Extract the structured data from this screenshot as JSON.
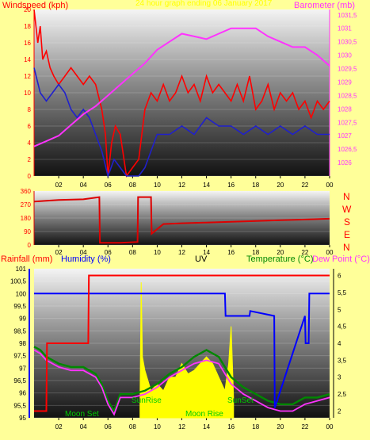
{
  "colors": {
    "background": "#ffff99",
    "windspeed": "#ff0000",
    "gust": "#ff0000",
    "avg": "#2020cc",
    "barometer": "#ff33ff",
    "direction": "#dd0000",
    "rainfall": "#ff0000",
    "humidity": "#0000ff",
    "temperature": "#008800",
    "dewpoint": "#ff33ff",
    "uv": "#ffff00",
    "solar_labels": "#00cc00"
  },
  "wind_panel": {
    "title_left": "Windspeed (kph)",
    "title_center": "24 hour graph ending 06 January 2017",
    "title_right": "Barometer (mb)"
  },
  "direction_panel": {
    "compass": [
      "N",
      "W",
      "S",
      "E",
      "N"
    ]
  },
  "temp_panel": {
    "labels": [
      "Rainfall (mm)",
      "Humidity (%)",
      "UV",
      "Temperature (°C)",
      "Dew Point (°C)"
    ],
    "events": [
      "Moon Set",
      "SunRise",
      "Moon Rise",
      "SunSet"
    ]
  },
  "chart_data": [
    {
      "type": "line",
      "title": "24 hour graph ending 06 January 2017",
      "ylabel": "Windspeed (kph)",
      "y2label": "Barometer (mb)",
      "x_ticks": [
        "02",
        "04",
        "06",
        "08",
        "10",
        "12",
        "14",
        "16",
        "18",
        "20",
        "22",
        "00"
      ],
      "ylim": [
        0,
        20
      ],
      "yticks": [
        0,
        2,
        4,
        6,
        8,
        10,
        12,
        14,
        16,
        18,
        20
      ],
      "y2lim": [
        1025.5,
        1031.7
      ],
      "y2ticks": [
        1026,
        1026.5,
        1027,
        1027.5,
        1028,
        1028.5,
        1029,
        1029.5,
        1030,
        1030.5,
        1031,
        1031.5
      ],
      "series": [
        {
          "name": "Windspeed (kph)",
          "axis": "left",
          "x": [
            0,
            0.3,
            0.5,
            0.7,
            1.0,
            1.3,
            1.6,
            2.0,
            2.5,
            3.0,
            3.5,
            4.0,
            4.5,
            5.0,
            5.5,
            5.8,
            6.0,
            6.3,
            6.6,
            7.0,
            7.5,
            8.0,
            8.5,
            9.0,
            9.5,
            10.0,
            10.5,
            11.0,
            11.5,
            12.0,
            12.5,
            13.0,
            13.5,
            14.0,
            14.5,
            15.0,
            15.5,
            16.0,
            16.5,
            17.0,
            17.5,
            18.0,
            18.5,
            19.0,
            19.5,
            20.0,
            20.5,
            21.0,
            21.5,
            22.0,
            22.5,
            23.0,
            23.5,
            24.0
          ],
          "y": [
            20,
            16,
            18,
            14,
            15,
            13,
            12,
            11,
            12,
            13,
            12,
            11,
            12,
            11,
            8,
            5,
            0,
            4,
            6,
            5,
            0,
            1,
            2,
            8,
            10,
            9,
            11,
            9,
            10,
            12,
            10,
            11,
            9,
            12,
            10,
            11,
            10,
            9,
            11,
            9,
            12,
            8,
            9,
            11,
            8,
            10,
            9,
            10,
            8,
            9,
            7,
            9,
            8,
            9
          ]
        },
        {
          "name": "Average windspeed (kph)",
          "axis": "left",
          "x": [
            0,
            0.5,
            1.0,
            1.5,
            2.0,
            2.5,
            3.0,
            3.5,
            4.0,
            4.5,
            5.0,
            5.5,
            6.0,
            6.5,
            7.0,
            7.5,
            8.0,
            8.5,
            9.0,
            9.5,
            10.0,
            11.0,
            12.0,
            13.0,
            14.0,
            15.0,
            16.0,
            17.0,
            18.0,
            19.0,
            20.0,
            21.0,
            22.0,
            23.0,
            24.0
          ],
          "y": [
            13,
            10,
            9,
            10,
            11,
            10,
            8,
            7,
            8,
            7,
            5,
            3,
            0,
            2,
            1,
            0,
            0,
            0,
            1,
            3,
            5,
            5,
            6,
            5,
            7,
            6,
            6,
            5,
            6,
            5,
            6,
            5,
            6,
            5,
            5
          ]
        },
        {
          "name": "Barometer (mb)",
          "axis": "right",
          "x": [
            0,
            1,
            2,
            3,
            4,
            5,
            6,
            7,
            8,
            9,
            10,
            11,
            12,
            13,
            14,
            15,
            16,
            17,
            18,
            19,
            20,
            21,
            22,
            23,
            24
          ],
          "y": [
            1026.6,
            1026.8,
            1027.0,
            1027.4,
            1027.8,
            1028.1,
            1028.5,
            1028.9,
            1029.3,
            1029.7,
            1030.2,
            1030.5,
            1030.8,
            1030.7,
            1030.6,
            1030.8,
            1031.0,
            1031.0,
            1031.0,
            1030.7,
            1030.5,
            1030.3,
            1030.3,
            1030.0,
            1029.6
          ]
        }
      ]
    },
    {
      "type": "line",
      "ylabel": "",
      "x_ticks": [
        "02",
        "04",
        "06",
        "08",
        "10",
        "12",
        "14",
        "16",
        "18",
        "20",
        "22",
        "00"
      ],
      "ylim": [
        0,
        360
      ],
      "yticks": [
        0,
        90,
        180,
        270,
        360
      ],
      "series": [
        {
          "name": "Wind direction",
          "x": [
            0,
            2,
            4,
            5.3,
            5.35,
            7,
            8.4,
            8.45,
            9.5,
            9.55,
            10.5,
            12,
            14,
            16,
            18,
            20,
            22,
            24
          ],
          "y": [
            290,
            300,
            305,
            320,
            15,
            15,
            20,
            320,
            320,
            75,
            140,
            145,
            150,
            155,
            160,
            165,
            170,
            175
          ]
        }
      ]
    },
    {
      "type": "line",
      "x_ticks": [
        "02",
        "04",
        "06",
        "08",
        "10",
        "12",
        "14",
        "16",
        "18",
        "20",
        "22",
        "00"
      ],
      "ylabel": "Humidity (%)",
      "ylim": [
        95,
        101
      ],
      "yticks": [
        95,
        95.5,
        96,
        96.5,
        97,
        97.5,
        98,
        98.5,
        99,
        99.5,
        100,
        100.5,
        101
      ],
      "y2lim": [
        1.8,
        6.2
      ],
      "y2ticks": [
        2,
        2.5,
        3,
        3.5,
        4,
        4.5,
        5,
        5.5,
        6
      ],
      "series": [
        {
          "name": "Rainfall (mm)",
          "axis": "right",
          "x": [
            0,
            1.0,
            1.05,
            4.4,
            4.45,
            24
          ],
          "y": [
            2,
            2,
            4,
            4,
            6,
            6
          ]
        },
        {
          "name": "Humidity (%)",
          "axis": "left",
          "x": [
            0,
            15.5,
            15.55,
            17.5,
            17.55,
            19.5,
            19.55,
            22,
            22.05,
            22.3,
            22.35,
            24
          ],
          "y": [
            100,
            100,
            99.1,
            99.1,
            99.3,
            99.1,
            95.4,
            99.1,
            98.0,
            98.0,
            100,
            100
          ]
        },
        {
          "name": "UV",
          "axis": "right",
          "x": [
            8.6,
            8.7,
            8.8,
            9.0,
            9.5,
            10.0,
            10.5,
            11.0,
            11.5,
            12.0,
            12.5,
            13.0,
            13.5,
            14.0,
            14.5,
            15.0,
            15.5,
            15.8,
            16.0,
            16.2
          ],
          "y": [
            2.2,
            5.8,
            3.6,
            3.2,
            2.6,
            2.8,
            2.6,
            3.0,
            3.0,
            3.4,
            3.1,
            3.2,
            3.4,
            3.6,
            3.4,
            3.0,
            2.6,
            3.4,
            4.5,
            2.4
          ]
        },
        {
          "name": "Temperature (°C)",
          "axis": "right",
          "x": [
            0,
            0.5,
            1.0,
            2.0,
            3.0,
            4.0,
            5.0,
            5.5,
            6.0,
            6.5,
            7.0,
            8.0,
            9.0,
            10.0,
            11.0,
            12.0,
            13.0,
            14.0,
            15.0,
            16.0,
            17.0,
            18.0,
            19.0,
            20.0,
            21.0,
            22.0,
            23.0,
            24.0
          ],
          "y": [
            3.9,
            3.8,
            3.6,
            3.4,
            3.3,
            3.3,
            3.1,
            2.8,
            2.3,
            2.0,
            2.5,
            2.5,
            2.6,
            2.8,
            3.1,
            3.3,
            3.6,
            3.8,
            3.6,
            3.0,
            2.7,
            2.5,
            2.3,
            2.2,
            2.2,
            2.4,
            2.4,
            2.5
          ]
        },
        {
          "name": "Dew Point (°C)",
          "axis": "right",
          "x": [
            0,
            0.5,
            1.0,
            2.0,
            3.0,
            4.0,
            5.0,
            5.5,
            6.0,
            6.5,
            7.0,
            8.0,
            9.0,
            10.0,
            11.0,
            12.0,
            13.0,
            14.0,
            15.0,
            16.0,
            17.0,
            18.0,
            19.0,
            20.0,
            21.0,
            22.0,
            23.0,
            24.0
          ],
          "y": [
            3.8,
            3.7,
            3.5,
            3.3,
            3.2,
            3.2,
            3.0,
            2.7,
            2.2,
            1.9,
            2.4,
            2.4,
            2.5,
            2.7,
            3.0,
            3.2,
            3.4,
            3.5,
            3.4,
            2.8,
            2.5,
            2.3,
            2.1,
            2.0,
            2.0,
            2.2,
            2.3,
            2.4
          ]
        }
      ]
    }
  ]
}
